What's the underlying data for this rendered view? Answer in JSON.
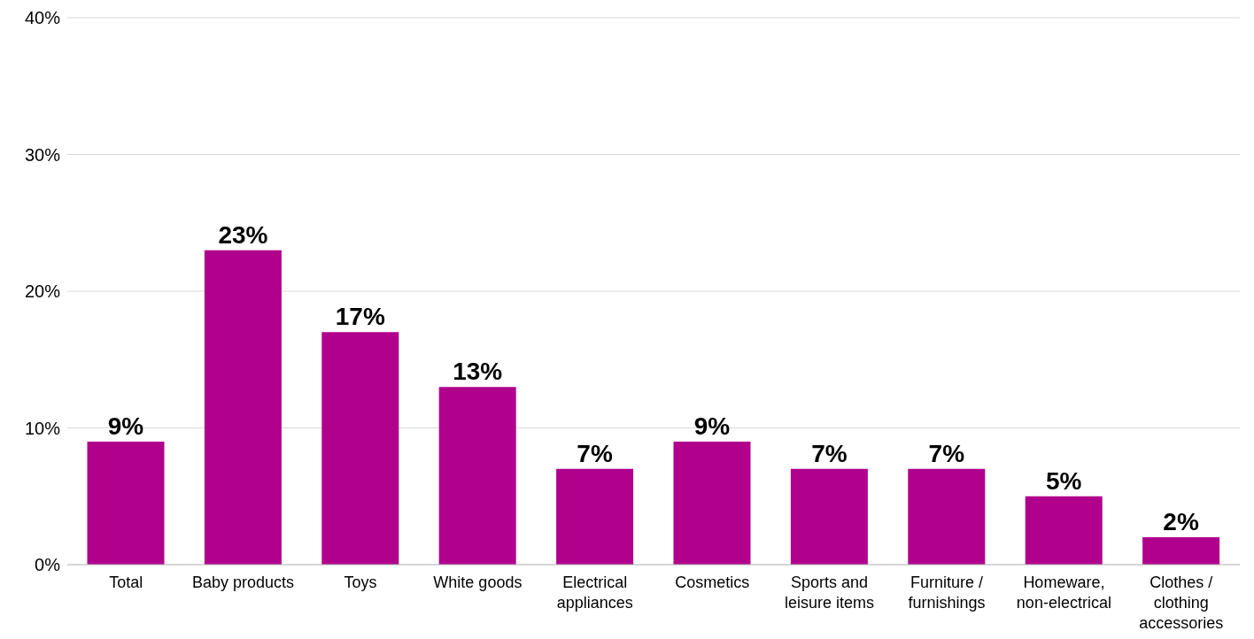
{
  "chart_data": {
    "type": "bar",
    "categories": [
      "Total",
      "Baby products",
      "Toys",
      "White goods",
      "Electrical appliances",
      "Cosmetics",
      "Sports and leisure items",
      "Furniture / furnishings",
      "Homeware, non-electrical",
      "Clothes / clothing accessories"
    ],
    "values": [
      9,
      23,
      17,
      13,
      7,
      9,
      7,
      7,
      5,
      2
    ],
    "value_labels": [
      "9%",
      "23%",
      "17%",
      "13%",
      "7%",
      "9%",
      "7%",
      "7%",
      "5%",
      "2%"
    ],
    "color": "#b0008c",
    "ylim": [
      0,
      40
    ],
    "yticks": [
      {
        "value": 0,
        "label": "0%"
      },
      {
        "value": 10,
        "label": "10%"
      },
      {
        "value": 20,
        "label": "20%"
      },
      {
        "value": 30,
        "label": "30%"
      },
      {
        "value": 40,
        "label": "40%"
      }
    ],
    "grid": "y",
    "legend": false
  }
}
